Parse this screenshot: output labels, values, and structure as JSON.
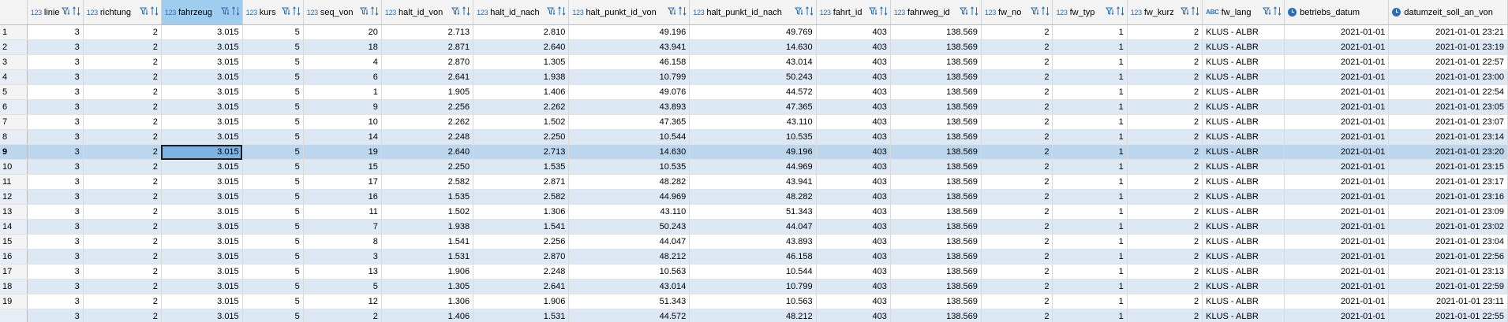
{
  "columns": [
    {
      "type": "123",
      "name": "linie"
    },
    {
      "type": "123",
      "name": "richtung"
    },
    {
      "type": "123",
      "name": "fahrzeug"
    },
    {
      "type": "123",
      "name": "kurs"
    },
    {
      "type": "123",
      "name": "seq_von"
    },
    {
      "type": "123",
      "name": "halt_id_von"
    },
    {
      "type": "123",
      "name": "halt_id_nach"
    },
    {
      "type": "123",
      "name": "halt_punkt_id_von"
    },
    {
      "type": "123",
      "name": "halt_punkt_id_nach"
    },
    {
      "type": "123",
      "name": "fahrt_id"
    },
    {
      "type": "123",
      "name": "fahrweg_id"
    },
    {
      "type": "123",
      "name": "fw_no"
    },
    {
      "type": "123",
      "name": "fw_typ"
    },
    {
      "type": "123",
      "name": "fw_kurz"
    },
    {
      "type": "ABC",
      "name": "fw_lang"
    },
    {
      "type": "clock",
      "name": "betriebs_datum"
    },
    {
      "type": "clock",
      "name": "datumzeit_soll_an_von"
    }
  ],
  "rows": [
    [
      "1",
      "3",
      "2",
      "3.015",
      "5",
      "20",
      "2.713",
      "2.810",
      "49.196",
      "49.769",
      "403",
      "138.569",
      "2",
      "1",
      "2",
      "KLUS - ALBR",
      "2021-01-01",
      "2021-01-01 23:21"
    ],
    [
      "2",
      "3",
      "2",
      "3.015",
      "5",
      "18",
      "2.871",
      "2.640",
      "43.941",
      "14.630",
      "403",
      "138.569",
      "2",
      "1",
      "2",
      "KLUS - ALBR",
      "2021-01-01",
      "2021-01-01 23:19"
    ],
    [
      "3",
      "3",
      "2",
      "3.015",
      "5",
      "4",
      "2.870",
      "1.305",
      "46.158",
      "43.014",
      "403",
      "138.569",
      "2",
      "1",
      "2",
      "KLUS - ALBR",
      "2021-01-01",
      "2021-01-01 22:57"
    ],
    [
      "4",
      "3",
      "2",
      "3.015",
      "5",
      "6",
      "2.641",
      "1.938",
      "10.799",
      "50.243",
      "403",
      "138.569",
      "2",
      "1",
      "2",
      "KLUS - ALBR",
      "2021-01-01",
      "2021-01-01 23:00"
    ],
    [
      "5",
      "3",
      "2",
      "3.015",
      "5",
      "1",
      "1.905",
      "1.406",
      "49.076",
      "44.572",
      "403",
      "138.569",
      "2",
      "1",
      "2",
      "KLUS - ALBR",
      "2021-01-01",
      "2021-01-01 22:54"
    ],
    [
      "6",
      "3",
      "2",
      "3.015",
      "5",
      "9",
      "2.256",
      "2.262",
      "43.893",
      "47.365",
      "403",
      "138.569",
      "2",
      "1",
      "2",
      "KLUS - ALBR",
      "2021-01-01",
      "2021-01-01 23:05"
    ],
    [
      "7",
      "3",
      "2",
      "3.015",
      "5",
      "10",
      "2.262",
      "1.502",
      "47.365",
      "43.110",
      "403",
      "138.569",
      "2",
      "1",
      "2",
      "KLUS - ALBR",
      "2021-01-01",
      "2021-01-01 23:07"
    ],
    [
      "8",
      "3",
      "2",
      "3.015",
      "5",
      "14",
      "2.248",
      "2.250",
      "10.544",
      "10.535",
      "403",
      "138.569",
      "2",
      "1",
      "2",
      "KLUS - ALBR",
      "2021-01-01",
      "2021-01-01 23:14"
    ],
    [
      "9",
      "3",
      "2",
      "3.015",
      "5",
      "19",
      "2.640",
      "2.713",
      "14.630",
      "49.196",
      "403",
      "138.569",
      "2",
      "1",
      "2",
      "KLUS - ALBR",
      "2021-01-01",
      "2021-01-01 23:20"
    ],
    [
      "10",
      "3",
      "2",
      "3.015",
      "5",
      "15",
      "2.250",
      "1.535",
      "10.535",
      "44.969",
      "403",
      "138.569",
      "2",
      "1",
      "2",
      "KLUS - ALBR",
      "2021-01-01",
      "2021-01-01 23:15"
    ],
    [
      "11",
      "3",
      "2",
      "3.015",
      "5",
      "17",
      "2.582",
      "2.871",
      "48.282",
      "43.941",
      "403",
      "138.569",
      "2",
      "1",
      "2",
      "KLUS - ALBR",
      "2021-01-01",
      "2021-01-01 23:17"
    ],
    [
      "12",
      "3",
      "2",
      "3.015",
      "5",
      "16",
      "1.535",
      "2.582",
      "44.969",
      "48.282",
      "403",
      "138.569",
      "2",
      "1",
      "2",
      "KLUS - ALBR",
      "2021-01-01",
      "2021-01-01 23:16"
    ],
    [
      "13",
      "3",
      "2",
      "3.015",
      "5",
      "11",
      "1.502",
      "1.306",
      "43.110",
      "51.343",
      "403",
      "138.569",
      "2",
      "1",
      "2",
      "KLUS - ALBR",
      "2021-01-01",
      "2021-01-01 23:09"
    ],
    [
      "14",
      "3",
      "2",
      "3.015",
      "5",
      "7",
      "1.938",
      "1.541",
      "50.243",
      "44.047",
      "403",
      "138.569",
      "2",
      "1",
      "2",
      "KLUS - ALBR",
      "2021-01-01",
      "2021-01-01 23:02"
    ],
    [
      "15",
      "3",
      "2",
      "3.015",
      "5",
      "8",
      "1.541",
      "2.256",
      "44.047",
      "43.893",
      "403",
      "138.569",
      "2",
      "1",
      "2",
      "KLUS - ALBR",
      "2021-01-01",
      "2021-01-01 23:04"
    ],
    [
      "16",
      "3",
      "2",
      "3.015",
      "5",
      "3",
      "1.531",
      "2.870",
      "48.212",
      "46.158",
      "403",
      "138.569",
      "2",
      "1",
      "2",
      "KLUS - ALBR",
      "2021-01-01",
      "2021-01-01 22:56"
    ],
    [
      "17",
      "3",
      "2",
      "3.015",
      "5",
      "13",
      "1.906",
      "2.248",
      "10.563",
      "10.544",
      "403",
      "138.569",
      "2",
      "1",
      "2",
      "KLUS - ALBR",
      "2021-01-01",
      "2021-01-01 23:13"
    ],
    [
      "18",
      "3",
      "2",
      "3.015",
      "5",
      "5",
      "1.305",
      "2.641",
      "43.014",
      "10.799",
      "403",
      "138.569",
      "2",
      "1",
      "2",
      "KLUS - ALBR",
      "2021-01-01",
      "2021-01-01 22:59"
    ],
    [
      "19",
      "3",
      "2",
      "3.015",
      "5",
      "12",
      "1.306",
      "1.906",
      "51.343",
      "10.563",
      "403",
      "138.569",
      "2",
      "1",
      "2",
      "KLUS - ALBR",
      "2021-01-01",
      "2021-01-01 23:11"
    ],
    [
      "",
      "3",
      "2",
      "3.015",
      "5",
      "2",
      "1.406",
      "1.531",
      "44.572",
      "48.212",
      "403",
      "138.569",
      "2",
      "1",
      "2",
      "KLUS - ALBR",
      "2021-01-01",
      "2021-01-01 22:55"
    ]
  ],
  "selected_row": "9",
  "selected_column": "fahrzeug",
  "colors": {
    "accent": "#2f6fb0",
    "header_selected": "#9fcdf0",
    "row_alt": "#dde8f5",
    "row_selected": "#bcd6ee"
  }
}
